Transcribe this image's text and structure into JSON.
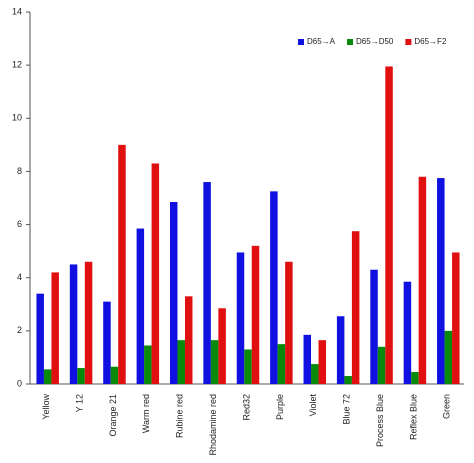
{
  "chart_data": {
    "type": "bar",
    "categories": [
      "Yellow",
      "Y 12",
      "Orange 21",
      "Warm red",
      "Rubine red",
      "Rhodamine red",
      "Red32",
      "Purple",
      "Violet",
      "Blue 72",
      "Process Blue",
      "Reflex Blue",
      "Green"
    ],
    "series": [
      {
        "name": "D65→A",
        "color": "#1010e0",
        "values": [
          3.4,
          4.5,
          3.1,
          5.85,
          6.85,
          7.6,
          4.95,
          7.25,
          1.85,
          2.55,
          4.3,
          3.85,
          7.75
        ]
      },
      {
        "name": "D65→D50",
        "color": "#0a8a0a",
        "values": [
          0.55,
          0.6,
          0.65,
          1.45,
          1.65,
          1.65,
          1.3,
          1.5,
          0.75,
          0.3,
          1.4,
          0.45,
          2.0
        ]
      },
      {
        "name": "D65→F2",
        "color": "#e01010",
        "values": [
          4.2,
          4.6,
          9.0,
          8.3,
          3.3,
          2.85,
          5.2,
          4.6,
          1.65,
          5.75,
          11.95,
          7.8,
          4.95
        ]
      }
    ],
    "ylim": [
      0,
      14
    ],
    "yticks": [
      0,
      2,
      4,
      6,
      8,
      10,
      12,
      14
    ],
    "legend": "upper right"
  }
}
